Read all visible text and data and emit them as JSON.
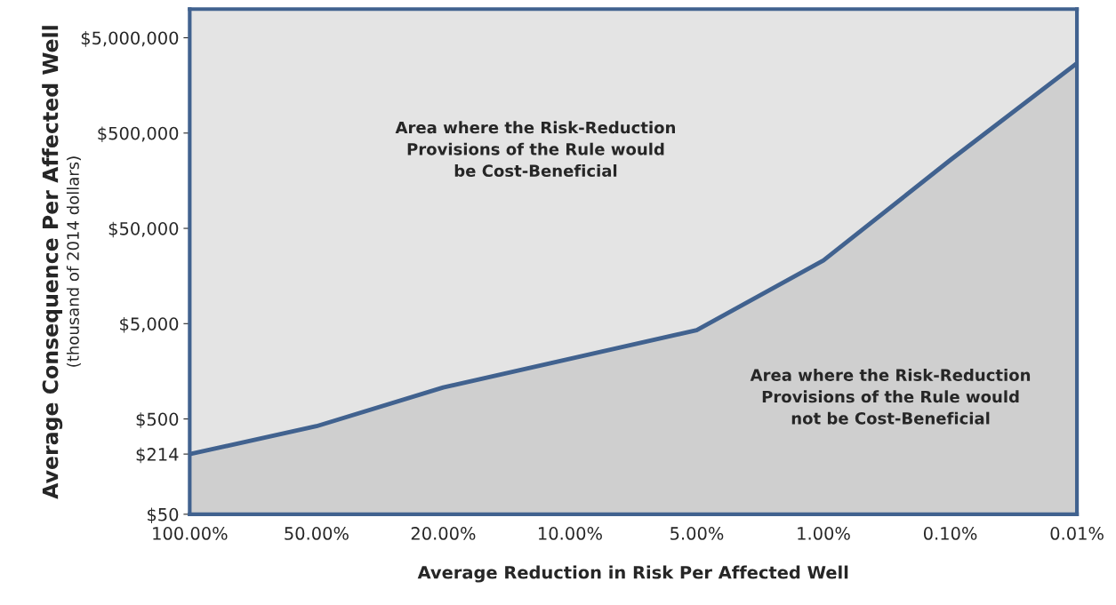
{
  "chart_data": {
    "type": "area",
    "xlabel": "Average Reduction in Risk Per Affected Well",
    "ylabel": "Average Consequence Per Affected Well\n(thousand of 2014 dollars)",
    "categories": [
      "100.00%",
      "50.00%",
      "20.00%",
      "10.00%",
      "5.00%",
      "1.00%",
      "0.10%",
      "0.01%"
    ],
    "series": [
      {
        "color": "#41628f",
        "values": [
          214,
          420,
          1070,
          2140,
          4280,
          23000,
          260000,
          2700000
        ]
      }
    ],
    "log": "y",
    "ylim": [
      50,
      10000000
    ],
    "yticks": [
      {
        "value": 50,
        "label": "$50"
      },
      {
        "value": 214,
        "label": "$214"
      },
      {
        "value": 500,
        "label": "$500"
      },
      {
        "value": 5000,
        "label": "$5,000"
      },
      {
        "value": 50000,
        "label": "$50,000"
      },
      {
        "value": 500000,
        "label": "$500,000"
      },
      {
        "value": 5000000,
        "label": "$5,000,000"
      }
    ],
    "grid": false,
    "legend": false,
    "annotations": [
      "Area where the Risk-Reduction\nProvisions of the Rule would\nbe Cost-Beneficial",
      "Area where the Risk-Reduction\nProvisions of the Rule would\nnot be Cost-Beneficial"
    ]
  }
}
